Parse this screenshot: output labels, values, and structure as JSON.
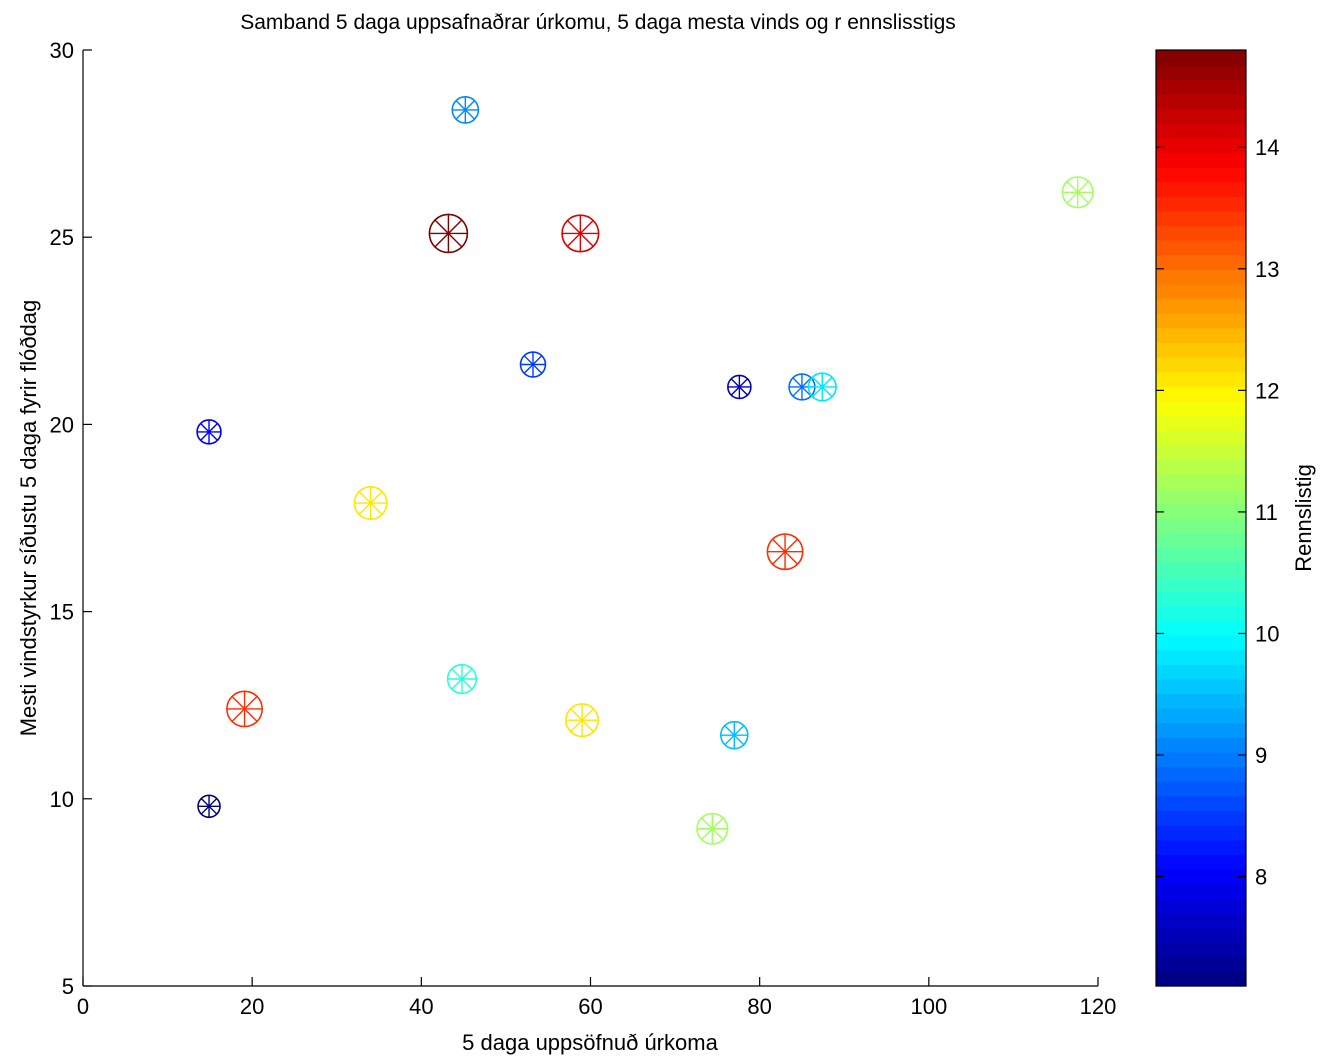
{
  "chart_data": {
    "type": "scatter",
    "title": "Samband 5 daga uppsafnaðrar úrkomu, 5 daga mesta vinds og r ennslisstigs",
    "xlabel": "5 daga uppsöfnuð úrkoma",
    "ylabel": "Mesti vindstyrkur síðustu 5 daga fyrir flóðdag",
    "xlim": [
      0,
      120
    ],
    "ylim": [
      5,
      30
    ],
    "xticks": [
      "0",
      "20",
      "40",
      "60",
      "80",
      "100",
      "120"
    ],
    "yticks": [
      "5",
      "10",
      "15",
      "20",
      "25",
      "30"
    ],
    "grid": false,
    "marker": "circled-asterisk",
    "colorbar": {
      "label": "Rennslistig",
      "colormap": "jet",
      "range": [
        7.1,
        14.8
      ],
      "ticks": [
        "8",
        "9",
        "10",
        "11",
        "12",
        "13",
        "14"
      ]
    },
    "points": [
      {
        "x": 45.2,
        "y": 28.4,
        "c": 9.1
      },
      {
        "x": 117.6,
        "y": 26.2,
        "c": 11.2
      },
      {
        "x": 43.2,
        "y": 25.1,
        "c": 14.8
      },
      {
        "x": 58.8,
        "y": 25.1,
        "c": 14.1
      },
      {
        "x": 53.2,
        "y": 21.6,
        "c": 8.5
      },
      {
        "x": 77.6,
        "y": 21.0,
        "c": 7.6
      },
      {
        "x": 85.0,
        "y": 21.0,
        "c": 8.9
      },
      {
        "x": 87.4,
        "y": 21.0,
        "c": 9.8
      },
      {
        "x": 14.9,
        "y": 19.8,
        "c": 8.0
      },
      {
        "x": 34.0,
        "y": 17.9,
        "c": 12.1
      },
      {
        "x": 83.0,
        "y": 16.6,
        "c": 13.5
      },
      {
        "x": 19.1,
        "y": 12.4,
        "c": 13.5
      },
      {
        "x": 44.8,
        "y": 13.2,
        "c": 10.3
      },
      {
        "x": 59.0,
        "y": 12.1,
        "c": 12.1
      },
      {
        "x": 77.0,
        "y": 11.7,
        "c": 9.5
      },
      {
        "x": 14.9,
        "y": 9.8,
        "c": 7.1
      },
      {
        "x": 74.4,
        "y": 9.2,
        "c": 11.2
      }
    ]
  }
}
